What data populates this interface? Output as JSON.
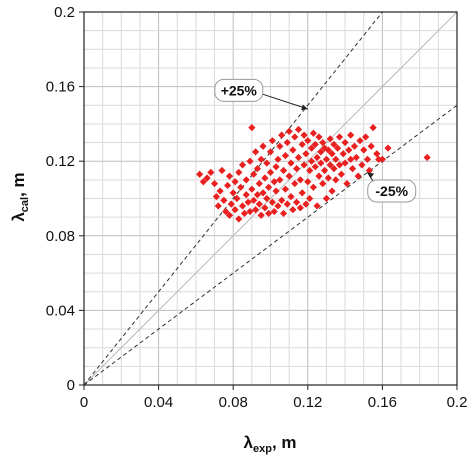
{
  "chart_data": {
    "type": "scatter",
    "title": "",
    "xlabel": {
      "main": "λ",
      "sub": "exp",
      "tail": ", m"
    },
    "ylabel": {
      "main": "λ",
      "sub": "cal",
      "tail": ", m"
    },
    "xlim": [
      0,
      0.2
    ],
    "ylim": [
      0,
      0.2
    ],
    "grid": true,
    "x_ticks": [
      0,
      0.04,
      0.08,
      0.12,
      0.16,
      0.2
    ],
    "x_tick_labels": [
      "0",
      "0.04",
      "0.08",
      "0.12",
      "0.16",
      "0.2"
    ],
    "y_ticks": [
      0,
      0.04,
      0.08,
      0.12,
      0.16,
      0.2
    ],
    "y_tick_labels": [
      "0",
      "0.04",
      "0.08",
      "0.12",
      "0.16",
      "0.2"
    ],
    "marker_color": "#e8201f",
    "reference_lines": [
      {
        "slope": 1.0,
        "style": "solid",
        "color": "#bbbbbb"
      },
      {
        "slope": 1.25,
        "style": "dashed",
        "color": "#333333"
      },
      {
        "slope": 0.75,
        "style": "dashed",
        "color": "#333333"
      }
    ],
    "annotations": [
      {
        "text": "+25%",
        "x": 0.083,
        "y": 0.158,
        "arrow_to": [
          0.12,
          0.148
        ]
      },
      {
        "text": "-25%",
        "x": 0.165,
        "y": 0.104,
        "arrow_to": [
          0.152,
          0.114
        ]
      }
    ],
    "points": [
      [
        0.062,
        0.113
      ],
      [
        0.064,
        0.109
      ],
      [
        0.066,
        0.111
      ],
      [
        0.068,
        0.114
      ],
      [
        0.07,
        0.108
      ],
      [
        0.071,
        0.101
      ],
      [
        0.072,
        0.096
      ],
      [
        0.073,
        0.104
      ],
      [
        0.074,
        0.115
      ],
      [
        0.075,
        0.099
      ],
      [
        0.076,
        0.093
      ],
      [
        0.077,
        0.107
      ],
      [
        0.078,
        0.112
      ],
      [
        0.078,
        0.091
      ],
      [
        0.079,
        0.097
      ],
      [
        0.08,
        0.103
      ],
      [
        0.081,
        0.109
      ],
      [
        0.081,
        0.094
      ],
      [
        0.082,
        0.1
      ],
      [
        0.083,
        0.114
      ],
      [
        0.083,
        0.089
      ],
      [
        0.084,
        0.106
      ],
      [
        0.085,
        0.096
      ],
      [
        0.085,
        0.118
      ],
      [
        0.086,
        0.092
      ],
      [
        0.087,
        0.102
      ],
      [
        0.087,
        0.11
      ],
      [
        0.088,
        0.098
      ],
      [
        0.089,
        0.12
      ],
      [
        0.089,
        0.093
      ],
      [
        0.09,
        0.105
      ],
      [
        0.09,
        0.138
      ],
      [
        0.091,
        0.099
      ],
      [
        0.091,
        0.113
      ],
      [
        0.092,
        0.094
      ],
      [
        0.092,
        0.125
      ],
      [
        0.093,
        0.102
      ],
      [
        0.093,
        0.116
      ],
      [
        0.094,
        0.097
      ],
      [
        0.094,
        0.108
      ],
      [
        0.095,
        0.091
      ],
      [
        0.095,
        0.121
      ],
      [
        0.096,
        0.103
      ],
      [
        0.096,
        0.128
      ],
      [
        0.097,
        0.095
      ],
      [
        0.097,
        0.111
      ],
      [
        0.098,
        0.1
      ],
      [
        0.098,
        0.119
      ],
      [
        0.099,
        0.106
      ],
      [
        0.099,
        0.092
      ],
      [
        0.1,
        0.114
      ],
      [
        0.1,
        0.125
      ],
      [
        0.101,
        0.098
      ],
      [
        0.101,
        0.131
      ],
      [
        0.102,
        0.109
      ],
      [
        0.102,
        0.093
      ],
      [
        0.103,
        0.117
      ],
      [
        0.103,
        0.104
      ],
      [
        0.104,
        0.121
      ],
      [
        0.104,
        0.096
      ],
      [
        0.105,
        0.128
      ],
      [
        0.105,
        0.11
      ],
      [
        0.106,
        0.099
      ],
      [
        0.106,
        0.134
      ],
      [
        0.107,
        0.115
      ],
      [
        0.107,
        0.092
      ],
      [
        0.108,
        0.123
      ],
      [
        0.108,
        0.105
      ],
      [
        0.109,
        0.097
      ],
      [
        0.109,
        0.13
      ],
      [
        0.11,
        0.112
      ],
      [
        0.11,
        0.136
      ],
      [
        0.111,
        0.101
      ],
      [
        0.111,
        0.119
      ],
      [
        0.112,
        0.094
      ],
      [
        0.112,
        0.126
      ],
      [
        0.113,
        0.108
      ],
      [
        0.113,
        0.133
      ],
      [
        0.114,
        0.098
      ],
      [
        0.114,
        0.116
      ],
      [
        0.115,
        0.122
      ],
      [
        0.115,
        0.137
      ],
      [
        0.116,
        0.095
      ],
      [
        0.116,
        0.11
      ],
      [
        0.117,
        0.129
      ],
      [
        0.117,
        0.103
      ],
      [
        0.118,
        0.118
      ],
      [
        0.118,
        0.134
      ],
      [
        0.119,
        0.097
      ],
      [
        0.119,
        0.124
      ],
      [
        0.12,
        0.109
      ],
      [
        0.12,
        0.131
      ],
      [
        0.121,
        0.115
      ],
      [
        0.121,
        0.1
      ],
      [
        0.122,
        0.127
      ],
      [
        0.122,
        0.12
      ],
      [
        0.123,
        0.135
      ],
      [
        0.123,
        0.106
      ],
      [
        0.124,
        0.117
      ],
      [
        0.124,
        0.129
      ],
      [
        0.125,
        0.122
      ],
      [
        0.125,
        0.096
      ],
      [
        0.126,
        0.112
      ],
      [
        0.126,
        0.133
      ],
      [
        0.127,
        0.119
      ],
      [
        0.127,
        0.125
      ],
      [
        0.128,
        0.108
      ],
      [
        0.128,
        0.13
      ],
      [
        0.129,
        0.115
      ],
      [
        0.129,
        0.127
      ],
      [
        0.13,
        0.121
      ],
      [
        0.13,
        0.1
      ],
      [
        0.131,
        0.126
      ],
      [
        0.131,
        0.111
      ],
      [
        0.132,
        0.118
      ],
      [
        0.132,
        0.132
      ],
      [
        0.133,
        0.104
      ],
      [
        0.133,
        0.124
      ],
      [
        0.134,
        0.116
      ],
      [
        0.134,
        0.129
      ],
      [
        0.135,
        0.121
      ],
      [
        0.135,
        0.11
      ],
      [
        0.136,
        0.127
      ],
      [
        0.137,
        0.118
      ],
      [
        0.137,
        0.133
      ],
      [
        0.138,
        0.113
      ],
      [
        0.139,
        0.124
      ],
      [
        0.14,
        0.119
      ],
      [
        0.14,
        0.13
      ],
      [
        0.141,
        0.108
      ],
      [
        0.142,
        0.126
      ],
      [
        0.143,
        0.121
      ],
      [
        0.143,
        0.134
      ],
      [
        0.144,
        0.116
      ],
      [
        0.145,
        0.128
      ],
      [
        0.146,
        0.122
      ],
      [
        0.147,
        0.112
      ],
      [
        0.148,
        0.131
      ],
      [
        0.149,
        0.118
      ],
      [
        0.15,
        0.126
      ],
      [
        0.151,
        0.133
      ],
      [
        0.152,
        0.121
      ],
      [
        0.153,
        0.115
      ],
      [
        0.154,
        0.128
      ],
      [
        0.155,
        0.138
      ],
      [
        0.157,
        0.124
      ],
      [
        0.158,
        0.121
      ],
      [
        0.16,
        0.121
      ],
      [
        0.163,
        0.127
      ],
      [
        0.184,
        0.122
      ]
    ]
  }
}
